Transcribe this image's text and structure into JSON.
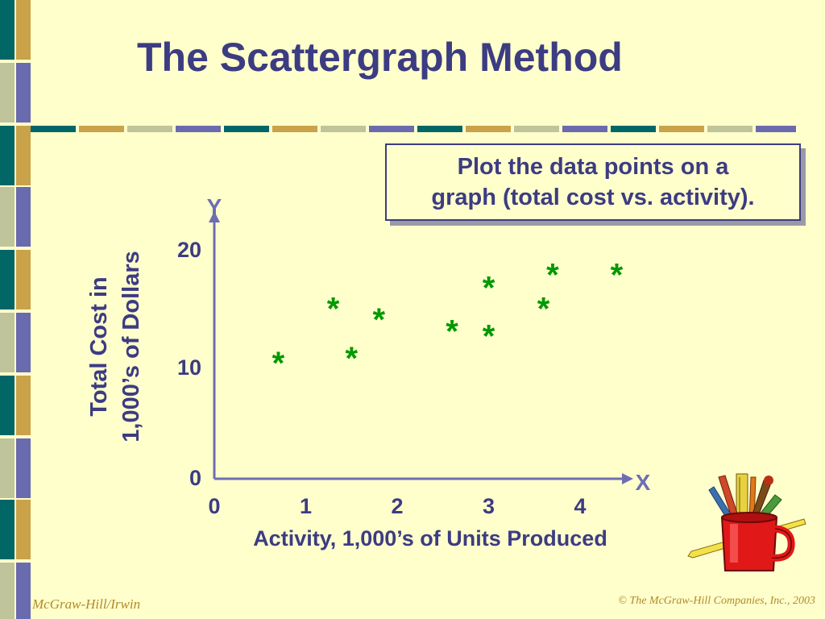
{
  "slide": {
    "title": "The Scattergraph Method",
    "callout_line1": "Plot the data points on a",
    "callout_line2": "graph (total cost vs. activity).",
    "footer_left": "McGraw-Hill/Irwin",
    "footer_right": "© The McGraw-Hill Companies, Inc., 2003"
  },
  "colors": {
    "background": "#FFFFCC",
    "title": "#3C3C82",
    "axis": "#6E6EB4",
    "point": "#009900",
    "footer": "#B08A28",
    "stripe_teal": "#006666",
    "stripe_gold": "#C9A24A",
    "stripe_sage": "#BFC49A",
    "stripe_purple": "#6A6AAE"
  },
  "icons": [
    "pencil-cup-clipart-icon"
  ],
  "chart_data": {
    "type": "scatter",
    "title": "",
    "xlabel": "Activity, 1,000’s of Units Produced",
    "ylabel_line1": "Total Cost in",
    "ylabel_line2": "1,000’s of Dollars",
    "x_axis_letter": "X",
    "y_axis_letter": "Y",
    "x_ticks": [
      "0",
      "1",
      "2",
      "3",
      "4"
    ],
    "y_ticks": [
      "0",
      "10",
      "20"
    ],
    "xlim": [
      0,
      4.5
    ],
    "ylim": [
      0,
      20
    ],
    "grid": false,
    "marker": "*",
    "points": [
      {
        "x": 0.7,
        "y": 10.9
      },
      {
        "x": 1.3,
        "y": 15.5
      },
      {
        "x": 1.5,
        "y": 11.3
      },
      {
        "x": 1.8,
        "y": 14.6
      },
      {
        "x": 2.6,
        "y": 13.6
      },
      {
        "x": 3.0,
        "y": 17.3
      },
      {
        "x": 3.0,
        "y": 13.2
      },
      {
        "x": 3.6,
        "y": 15.5
      },
      {
        "x": 3.7,
        "y": 18.4
      },
      {
        "x": 4.4,
        "y": 18.4
      }
    ]
  }
}
